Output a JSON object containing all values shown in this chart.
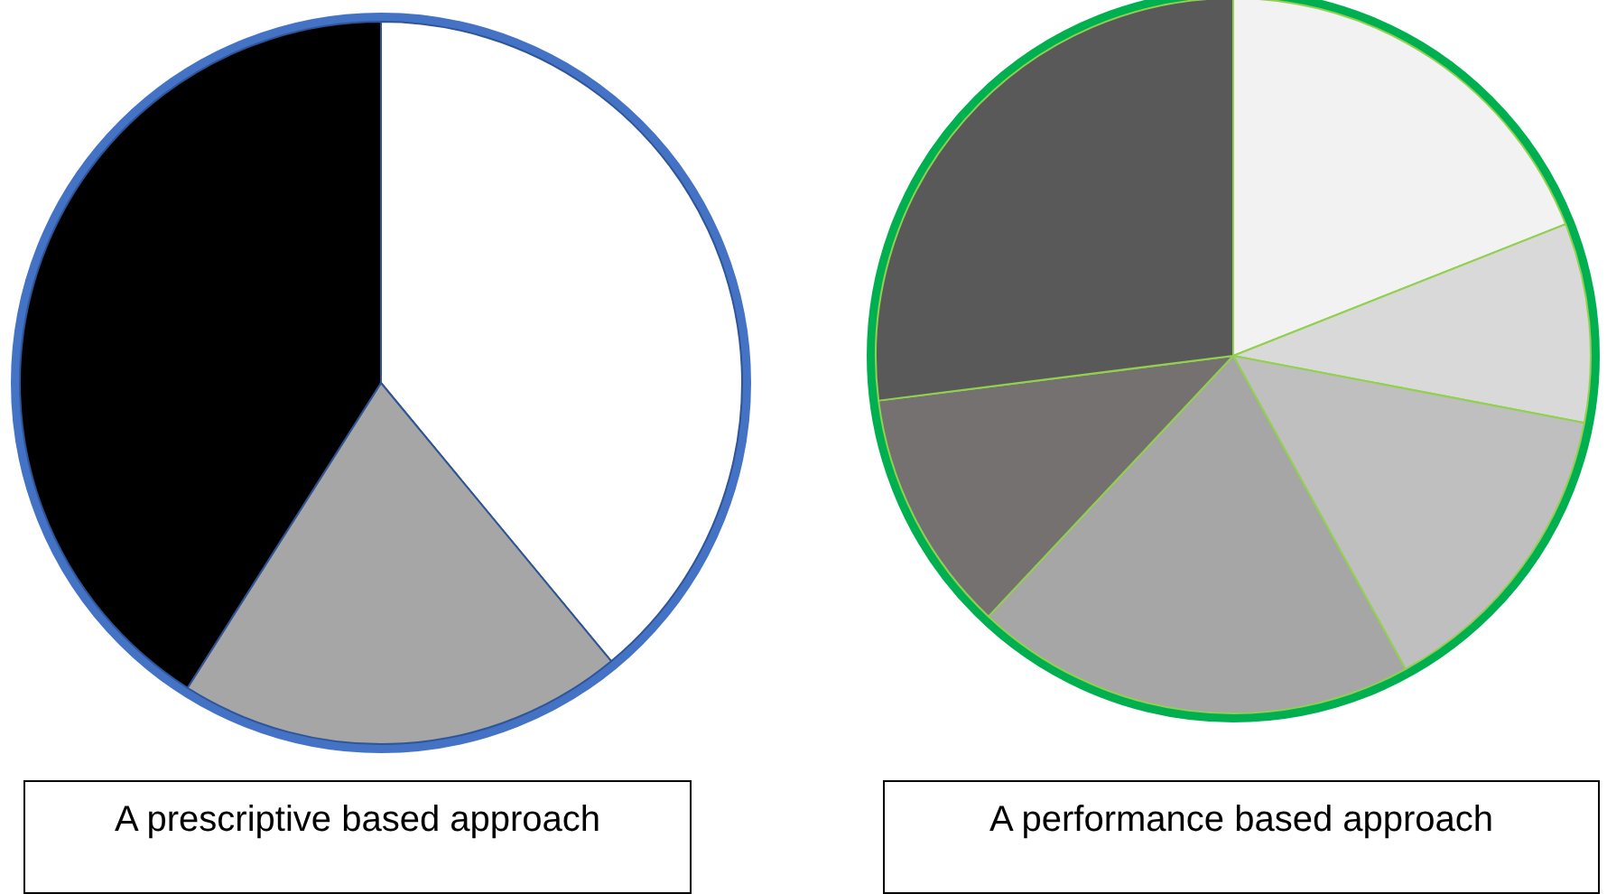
{
  "chart_data": [
    {
      "type": "pie",
      "title": "A prescriptive based approach",
      "categories": [
        null,
        null,
        null
      ],
      "values": [
        39,
        20,
        41
      ],
      "colors": [
        "#ffffff",
        "#a6a6a6",
        "#000000"
      ]
    },
    {
      "type": "pie",
      "title": "A performance based approach",
      "categories": [
        null,
        null,
        null,
        null,
        null,
        null
      ],
      "values": [
        19,
        9,
        14,
        20,
        11,
        27
      ],
      "colors": [
        "#f2f2f2",
        "#d9d9d9",
        "#bfbfbf",
        "#a6a6a6",
        "#767171",
        "#595959"
      ]
    }
  ]
}
